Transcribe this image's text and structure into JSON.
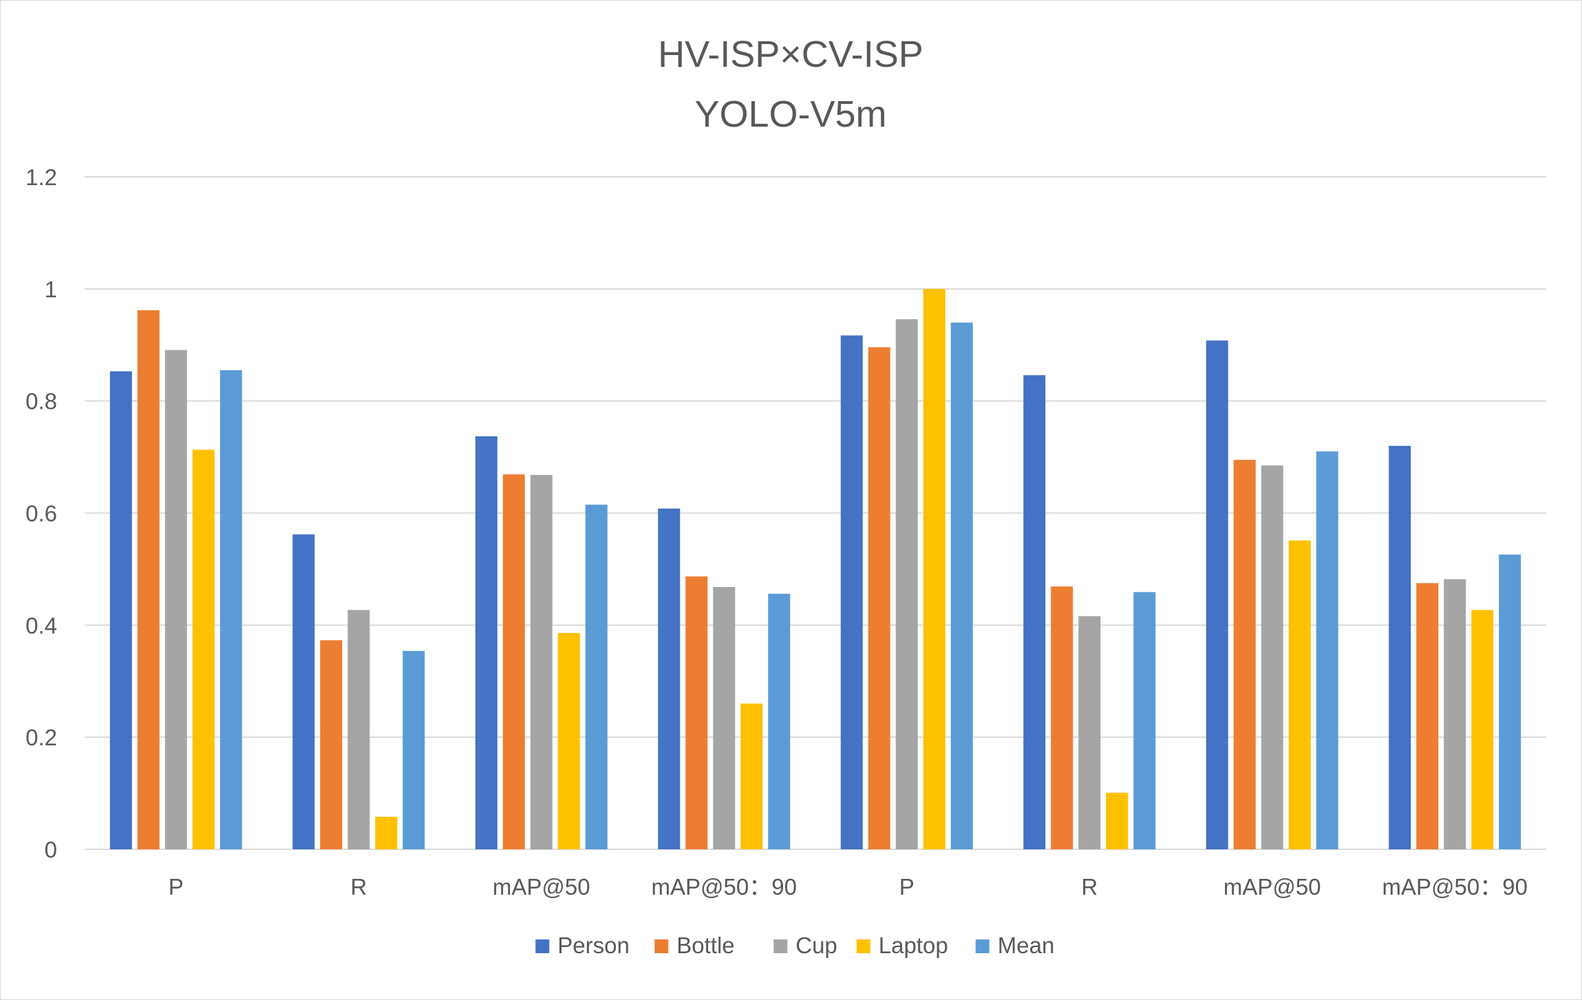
{
  "chart_data": {
    "type": "bar",
    "title": [
      "HV-ISP×CV-ISP",
      "YOLO-V5m"
    ],
    "categories": [
      "P",
      "R",
      "mAP@50",
      "mAP@50：90",
      "P",
      "R",
      "mAP@50",
      "mAP@50：90"
    ],
    "series": [
      {
        "name": "Person",
        "color": "#4472C4",
        "values": [
          0.853,
          0.562,
          0.737,
          0.608,
          0.917,
          0.846,
          0.908,
          0.72
        ]
      },
      {
        "name": "Bottle",
        "color": "#ED7D31",
        "values": [
          0.962,
          0.373,
          0.669,
          0.487,
          0.896,
          0.469,
          0.695,
          0.475
        ]
      },
      {
        "name": "Cup",
        "color": "#A5A5A5",
        "values": [
          0.891,
          0.427,
          0.668,
          0.468,
          0.946,
          0.416,
          0.685,
          0.482
        ]
      },
      {
        "name": "Laptop",
        "color": "#FFC000",
        "values": [
          0.713,
          0.058,
          0.386,
          0.26,
          1.0,
          0.101,
          0.551,
          0.427
        ]
      },
      {
        "name": "Mean",
        "color": "#5B9BD5",
        "values": [
          0.855,
          0.354,
          0.615,
          0.456,
          0.94,
          0.459,
          0.71,
          0.526
        ]
      }
    ],
    "ylim": [
      0,
      1.2
    ],
    "yticks": [
      "0",
      "0.2",
      "0.4",
      "0.6",
      "0.8",
      "1",
      "1.2"
    ],
    "ytick_values": [
      0,
      0.2,
      0.4,
      0.6,
      0.8,
      1.0,
      1.2
    ],
    "grid": true,
    "legend_position": "bottom"
  }
}
